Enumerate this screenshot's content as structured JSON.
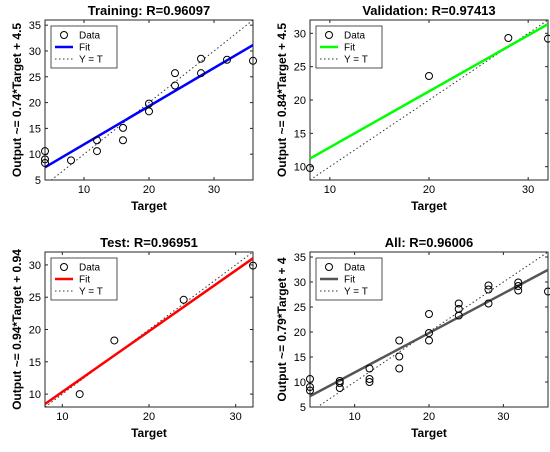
{
  "chart_data": [
    {
      "type": "scatter",
      "title": "Training: R=0.96097",
      "xlabel": "Target",
      "ylabel": "Output ~= 0.74*Target + 4.5",
      "xlim": [
        4,
        36
      ],
      "ylim": [
        5,
        36
      ],
      "xticks": [
        10,
        20,
        30
      ],
      "yticks": [
        5,
        10,
        15,
        20,
        25,
        30,
        35
      ],
      "fit": {
        "slope": 0.74,
        "intercept": 4.5,
        "color": "#0000ff"
      },
      "legend": [
        "Data",
        "Fit",
        "Y = T"
      ],
      "legend_position": "top-left",
      "points": [
        {
          "x": 4,
          "y": 8.3
        },
        {
          "x": 4,
          "y": 9
        },
        {
          "x": 4,
          "y": 10.6
        },
        {
          "x": 8,
          "y": 8.8
        },
        {
          "x": 12,
          "y": 10.6
        },
        {
          "x": 12,
          "y": 12.7
        },
        {
          "x": 16,
          "y": 12.7
        },
        {
          "x": 16,
          "y": 15.1
        },
        {
          "x": 20,
          "y": 18.3
        },
        {
          "x": 20,
          "y": 19.8
        },
        {
          "x": 24,
          "y": 23.3
        },
        {
          "x": 24,
          "y": 25.7
        },
        {
          "x": 28,
          "y": 25.7
        },
        {
          "x": 28,
          "y": 28.5
        },
        {
          "x": 32,
          "y": 28.3
        },
        {
          "x": 36,
          "y": 28.1
        }
      ]
    },
    {
      "type": "scatter",
      "title": "Validation: R=0.97413",
      "xlabel": "Target",
      "ylabel": "Output ~= 0.84*Target + 4.5",
      "xlim": [
        8,
        32
      ],
      "ylim": [
        8,
        32
      ],
      "xticks": [
        10,
        20,
        30
      ],
      "yticks": [
        10,
        15,
        20,
        25,
        30
      ],
      "fit": {
        "slope": 0.84,
        "intercept": 4.5,
        "color": "#00ff00"
      },
      "legend": [
        "Data",
        "Fit",
        "Y = T"
      ],
      "legend_position": "top-left",
      "points": [
        {
          "x": 8,
          "y": 9.8
        },
        {
          "x": 20,
          "y": 23.6
        },
        {
          "x": 28,
          "y": 29.3
        },
        {
          "x": 32,
          "y": 29.2
        }
      ]
    },
    {
      "type": "scatter",
      "title": "Test: R=0.96951",
      "xlabel": "Target",
      "ylabel": "Output ~= 0.94*Target + 0.94",
      "xlim": [
        8,
        32
      ],
      "ylim": [
        8,
        32
      ],
      "xticks": [
        10,
        20,
        30
      ],
      "yticks": [
        10,
        15,
        20,
        25,
        30
      ],
      "fit": {
        "slope": 0.94,
        "intercept": 0.94,
        "color": "#ff0000"
      },
      "legend": [
        "Data",
        "Fit",
        "Y = T"
      ],
      "legend_position": "top-left",
      "points": [
        {
          "x": 12,
          "y": 10
        },
        {
          "x": 16,
          "y": 18.3
        },
        {
          "x": 24,
          "y": 24.6
        },
        {
          "x": 32,
          "y": 29.9
        }
      ]
    },
    {
      "type": "scatter",
      "title": "All: R=0.96006",
      "xlabel": "Target",
      "ylabel": "Output ~= 0.79*Target + 4",
      "xlim": [
        4,
        36
      ],
      "ylim": [
        5,
        36
      ],
      "xticks": [
        10,
        20,
        30
      ],
      "yticks": [
        5,
        10,
        15,
        20,
        25,
        30,
        35
      ],
      "fit": {
        "slope": 0.79,
        "intercept": 4,
        "color": "#555555"
      },
      "legend": [
        "Data",
        "Fit",
        "Y = T"
      ],
      "legend_position": "top-left",
      "points": [
        {
          "x": 4,
          "y": 8.3
        },
        {
          "x": 4,
          "y": 9
        },
        {
          "x": 4,
          "y": 10.6
        },
        {
          "x": 8,
          "y": 8.8
        },
        {
          "x": 8,
          "y": 9.8
        },
        {
          "x": 8,
          "y": 10.2
        },
        {
          "x": 12,
          "y": 10
        },
        {
          "x": 12,
          "y": 10.6
        },
        {
          "x": 12,
          "y": 12.7
        },
        {
          "x": 16,
          "y": 12.7
        },
        {
          "x": 16,
          "y": 15.1
        },
        {
          "x": 16,
          "y": 18.3
        },
        {
          "x": 20,
          "y": 18.3
        },
        {
          "x": 20,
          "y": 19.8
        },
        {
          "x": 20,
          "y": 23.6
        },
        {
          "x": 24,
          "y": 23.3
        },
        {
          "x": 24,
          "y": 24.6
        },
        {
          "x": 24,
          "y": 25.7
        },
        {
          "x": 28,
          "y": 25.7
        },
        {
          "x": 28,
          "y": 28.5
        },
        {
          "x": 28,
          "y": 29.3
        },
        {
          "x": 32,
          "y": 28.3
        },
        {
          "x": 32,
          "y": 29.2
        },
        {
          "x": 32,
          "y": 29.9
        },
        {
          "x": 36,
          "y": 28.1
        }
      ]
    }
  ]
}
